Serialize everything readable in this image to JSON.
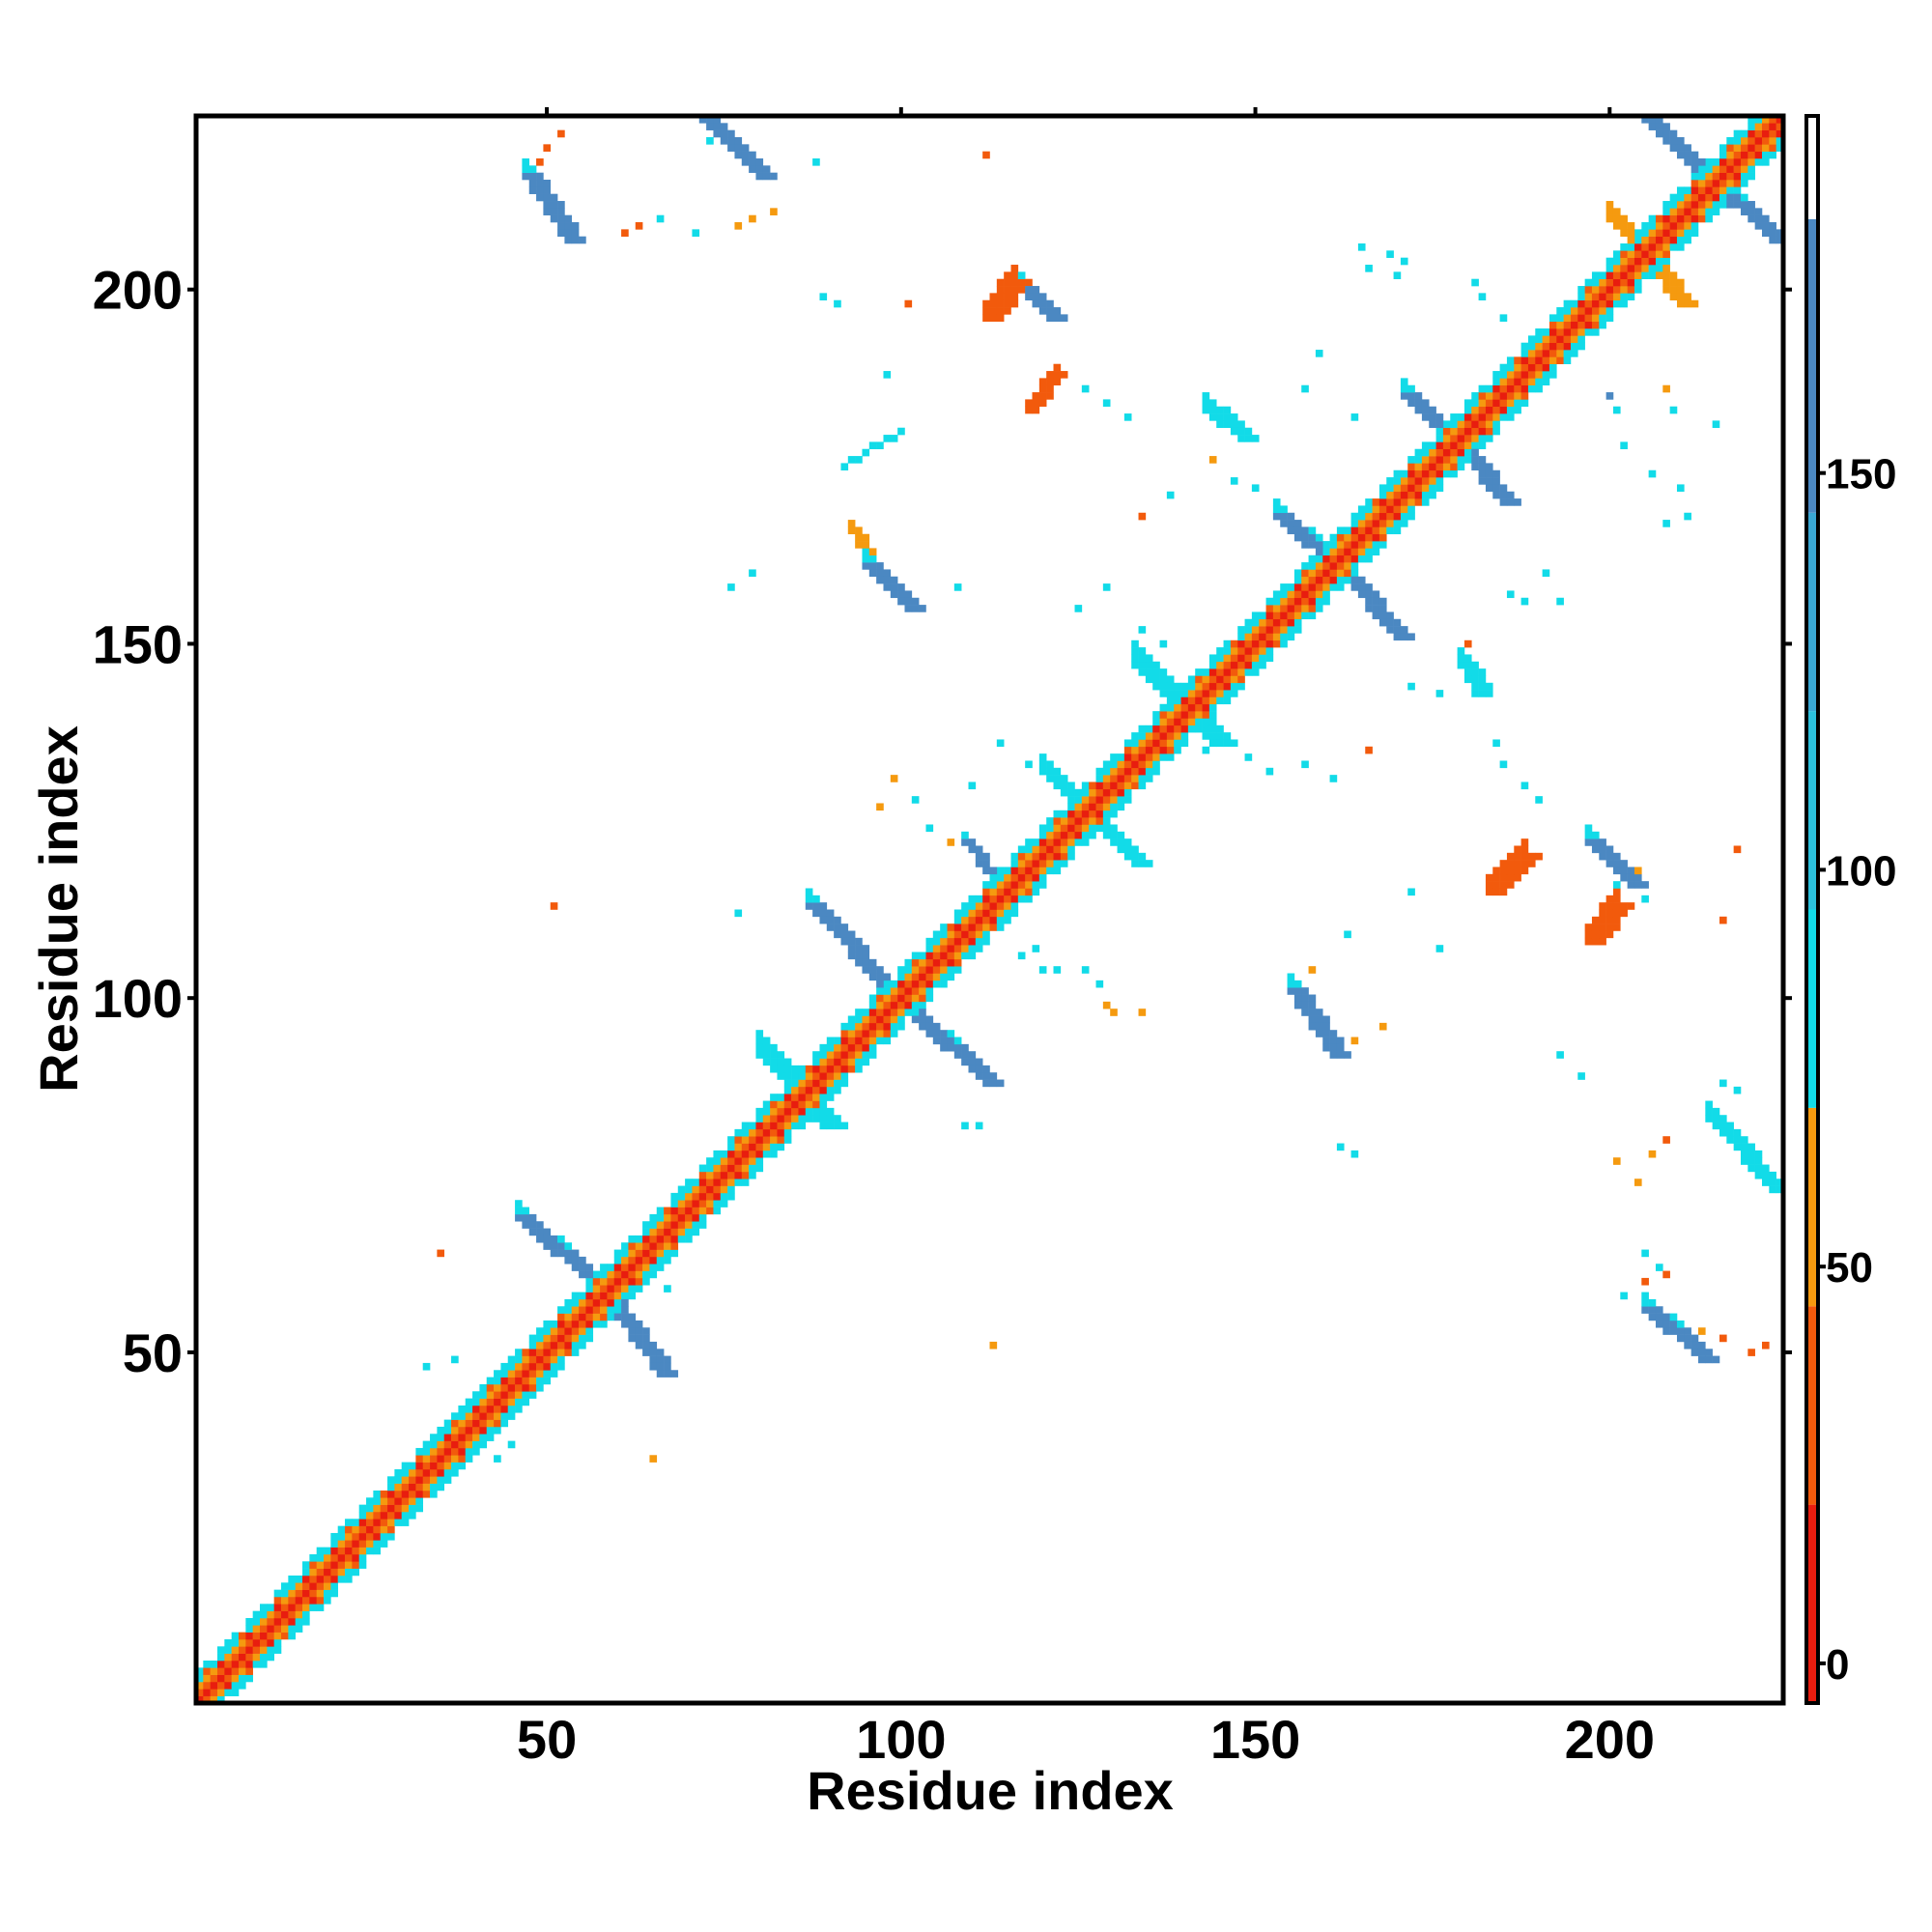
{
  "chart_data": {
    "type": "heatmap",
    "title": "",
    "xlabel": "Residue index",
    "ylabel": "Residue index",
    "xlim": [
      1,
      224
    ],
    "ylim": [
      1,
      224
    ],
    "xticks": [
      50,
      100,
      150,
      200
    ],
    "yticks": [
      50,
      100,
      150,
      200
    ],
    "grid": false,
    "legend": "none",
    "colorbar": {
      "placement": "right",
      "ticks": [
        0,
        50,
        100,
        150
      ],
      "range": [
        -5,
        195
      ],
      "bands": [
        {
          "from": -5,
          "to": 20,
          "color": "#e81d0f"
        },
        {
          "from": 20,
          "to": 45,
          "color": "#f25a0c"
        },
        {
          "from": 45,
          "to": 70,
          "color": "#f59a0f"
        },
        {
          "from": 70,
          "to": 95,
          "color": "#12dbe8"
        },
        {
          "from": 95,
          "to": 120,
          "color": "#2cc0dc"
        },
        {
          "from": 120,
          "to": 145,
          "color": "#3aa7d3"
        },
        {
          "from": 145,
          "to": 182,
          "color": "#4b88c2"
        },
        {
          "from": 182,
          "to": 195,
          "color": "#ffffff"
        }
      ]
    },
    "color_scale": {
      "0": "#e81d0f",
      "1": "#f25a0c",
      "2": "#f59a0f",
      "3": "#12dbe8",
      "4": "#4b88c2"
    },
    "diagonal": {
      "from": 1,
      "to": 224
    },
    "segments": [
      {
        "x0": 47,
        "y0": 216,
        "x1": 53,
        "y1": 207,
        "v": 4,
        "w": 3
      },
      {
        "x0": 72,
        "y0": 224,
        "x1": 80,
        "y1": 216,
        "v": 4,
        "w": 3
      },
      {
        "x0": 46,
        "y0": 69,
        "x1": 58,
        "y1": 58,
        "v": 4,
        "w": 3
      },
      {
        "x0": 58,
        "y0": 58,
        "x1": 66,
        "y1": 47,
        "v": 4,
        "w": 3
      },
      {
        "x0": 87,
        "y0": 113,
        "x1": 98,
        "y1": 101,
        "v": 4,
        "w": 3
      },
      {
        "x0": 101,
        "y0": 98,
        "x1": 112,
        "y1": 88,
        "v": 4,
        "w": 3
      },
      {
        "x0": 80,
        "y0": 92,
        "x1": 89,
        "y1": 82,
        "v": 3,
        "w": 4
      },
      {
        "x0": 133,
        "y0": 147,
        "x1": 144,
        "y1": 136,
        "v": 3,
        "w": 4
      },
      {
        "x0": 120,
        "y0": 132,
        "x1": 133,
        "y1": 119,
        "v": 3,
        "w": 3
      },
      {
        "x0": 153,
        "y0": 168,
        "x1": 162,
        "y1": 160,
        "v": 4,
        "w": 3
      },
      {
        "x0": 162,
        "y0": 160,
        "x1": 170,
        "y1": 151,
        "v": 4,
        "w": 3
      },
      {
        "x0": 171,
        "y0": 185,
        "x1": 178,
        "y1": 178,
        "v": 4,
        "w": 3
      },
      {
        "x0": 178,
        "y0": 178,
        "x1": 185,
        "y1": 170,
        "v": 4,
        "w": 3
      },
      {
        "x0": 205,
        "y0": 224,
        "x1": 213,
        "y1": 216,
        "v": 4,
        "w": 3
      },
      {
        "x0": 213,
        "y0": 216,
        "x1": 223,
        "y1": 207,
        "v": 4,
        "w": 3
      },
      {
        "x0": 200,
        "y0": 210,
        "x1": 210,
        "y1": 198,
        "v": 2,
        "w": 3
      },
      {
        "x0": 197,
        "y0": 122,
        "x1": 203,
        "y1": 116,
        "v": 4,
        "w": 3
      },
      {
        "x0": 197,
        "y0": 108,
        "x1": 201,
        "y1": 113,
        "v": 1,
        "w": 3
      },
      {
        "x0": 183,
        "y0": 115,
        "x1": 188,
        "y1": 120,
        "v": 1,
        "w": 3
      },
      {
        "x0": 155,
        "y0": 101,
        "x1": 161,
        "y1": 92,
        "v": 4,
        "w": 3
      },
      {
        "x0": 205,
        "y0": 56,
        "x1": 213,
        "y1": 49,
        "v": 4,
        "w": 3
      },
      {
        "x0": 214,
        "y0": 83,
        "x1": 223,
        "y1": 73,
        "v": 3,
        "w": 3
      },
      {
        "x0": 95,
        "y0": 161,
        "x1": 101,
        "y1": 155,
        "v": 4,
        "w": 3
      },
      {
        "x0": 93,
        "y0": 166,
        "x1": 96,
        "y1": 161,
        "v": 2,
        "w": 2
      },
      {
        "x0": 112,
        "y0": 196,
        "x1": 116,
        "y1": 201,
        "v": 1,
        "w": 3
      },
      {
        "x0": 117,
        "y0": 200,
        "x1": 121,
        "y1": 196,
        "v": 4,
        "w": 3
      },
      {
        "x0": 118,
        "y0": 183,
        "x1": 122,
        "y1": 188,
        "v": 1,
        "w": 2
      },
      {
        "x0": 143,
        "y0": 183,
        "x1": 148,
        "y1": 179,
        "v": 3,
        "w": 3
      },
      {
        "x0": 179,
        "y0": 147,
        "x1": 181,
        "y1": 143,
        "v": 3,
        "w": 3
      },
      {
        "x0": 32,
        "y0": 35,
        "x1": 45,
        "y1": 48,
        "v": 3,
        "w": 2
      },
      {
        "x0": 36,
        "y0": 33,
        "x1": 48,
        "y1": 45,
        "v": 3,
        "w": 2
      },
      {
        "x0": 109,
        "y0": 122,
        "x1": 115,
        "y1": 114,
        "v": 4,
        "w": 2
      },
      {
        "x0": 92,
        "y0": 175,
        "x1": 100,
        "y1": 180,
        "v": 3,
        "w": 1
      }
    ],
    "points": [
      [
        50,
        220,
        1
      ],
      [
        49,
        218,
        1
      ],
      [
        52,
        222,
        1
      ],
      [
        61,
        208,
        1
      ],
      [
        63,
        209,
        1
      ],
      [
        66,
        210,
        3
      ],
      [
        71,
        208,
        3
      ],
      [
        77,
        209,
        2
      ],
      [
        79,
        210,
        2
      ],
      [
        82,
        211,
        2
      ],
      [
        73,
        221,
        3
      ],
      [
        88,
        218,
        3
      ],
      [
        112,
        219,
        1
      ],
      [
        89,
        199,
        3
      ],
      [
        91,
        198,
        3
      ],
      [
        101,
        198,
        1
      ],
      [
        98,
        188,
        3
      ],
      [
        126,
        186,
        3
      ],
      [
        129,
        184,
        3
      ],
      [
        132,
        182,
        3
      ],
      [
        144,
        176,
        2
      ],
      [
        150,
        172,
        3
      ],
      [
        147,
        173,
        3
      ],
      [
        138,
        171,
        3
      ],
      [
        134,
        168,
        1
      ],
      [
        149,
        180,
        1
      ],
      [
        157,
        186,
        3
      ],
      [
        159,
        191,
        3
      ],
      [
        164,
        182,
        3
      ],
      [
        181,
        201,
        3
      ],
      [
        182,
        199,
        3
      ],
      [
        185,
        196,
        3
      ],
      [
        209,
        183,
        3
      ],
      [
        215,
        181,
        3
      ],
      [
        208,
        186,
        2
      ],
      [
        165,
        206,
        3
      ],
      [
        166,
        203,
        3
      ],
      [
        169,
        205,
        3
      ],
      [
        170,
        202,
        3
      ],
      [
        171,
        204,
        3
      ],
      [
        200,
        185,
        4
      ],
      [
        201,
        183,
        3
      ],
      [
        202,
        178,
        3
      ],
      [
        206,
        174,
        3
      ],
      [
        210,
        172,
        3
      ],
      [
        208,
        167,
        3
      ],
      [
        211,
        168,
        3
      ],
      [
        188,
        156,
        3
      ],
      [
        186,
        157,
        3
      ],
      [
        191,
        160,
        3
      ],
      [
        193,
        156,
        3
      ],
      [
        180,
        150,
        1
      ],
      [
        172,
        144,
        3
      ],
      [
        176,
        143,
        3
      ],
      [
        184,
        136,
        3
      ],
      [
        185,
        133,
        3
      ],
      [
        188,
        130,
        3
      ],
      [
        190,
        128,
        3
      ],
      [
        143,
        135,
        3
      ],
      [
        149,
        134,
        3
      ],
      [
        152,
        132,
        3
      ],
      [
        157,
        133,
        3
      ],
      [
        161,
        131,
        3
      ],
      [
        166,
        135,
        1
      ],
      [
        137,
        150,
        3
      ],
      [
        134,
        152,
        3
      ],
      [
        125,
        155,
        3
      ],
      [
        129,
        158,
        3
      ],
      [
        79,
        160,
        3
      ],
      [
        76,
        158,
        3
      ],
      [
        108,
        158,
        3
      ],
      [
        114,
        136,
        3
      ],
      [
        118,
        133,
        3
      ],
      [
        110,
        130,
        3
      ],
      [
        102,
        128,
        3
      ],
      [
        104,
        124,
        3
      ],
      [
        107,
        122,
        2
      ],
      [
        97,
        127,
        2
      ],
      [
        99,
        131,
        2
      ],
      [
        77,
        112,
        3
      ],
      [
        51,
        113,
        1
      ],
      [
        119,
        107,
        3
      ],
      [
        117,
        106,
        3
      ],
      [
        120,
        104,
        3
      ],
      [
        122,
        104,
        3
      ],
      [
        126,
        104,
        3
      ],
      [
        128,
        102,
        3
      ],
      [
        129,
        99,
        2
      ],
      [
        134,
        98,
        2
      ],
      [
        130,
        98,
        2
      ],
      [
        163,
        109,
        3
      ],
      [
        172,
        115,
        3
      ],
      [
        176,
        107,
        3
      ],
      [
        201,
        116,
        3
      ],
      [
        204,
        118,
        2
      ],
      [
        205,
        114,
        3
      ],
      [
        216,
        111,
        1
      ],
      [
        218,
        121,
        1
      ],
      [
        158,
        104,
        2
      ],
      [
        164,
        94,
        2
      ],
      [
        168,
        96,
        2
      ],
      [
        193,
        92,
        3
      ],
      [
        196,
        89,
        3
      ],
      [
        216,
        88,
        3
      ],
      [
        218,
        87,
        3
      ],
      [
        162,
        79,
        3
      ],
      [
        164,
        78,
        3
      ],
      [
        109,
        82,
        3
      ],
      [
        111,
        82,
        3
      ],
      [
        201,
        77,
        2
      ],
      [
        204,
        74,
        2
      ],
      [
        208,
        80,
        1
      ],
      [
        206,
        78,
        2
      ],
      [
        207,
        62,
        3
      ],
      [
        205,
        60,
        1
      ],
      [
        208,
        61,
        1
      ],
      [
        202,
        58,
        3
      ],
      [
        205,
        64,
        3
      ],
      [
        214,
        50,
        1
      ],
      [
        216,
        52,
        1
      ],
      [
        213,
        53,
        2
      ],
      [
        220,
        50,
        1
      ],
      [
        222,
        51,
        1
      ],
      [
        35,
        64,
        1
      ],
      [
        113,
        51,
        2
      ],
      [
        65,
        35,
        2
      ],
      [
        33,
        48,
        3
      ],
      [
        37,
        49,
        3
      ],
      [
        43,
        35,
        3
      ],
      [
        45,
        37,
        3
      ],
      [
        29,
        31,
        3
      ],
      [
        31,
        27,
        3
      ],
      [
        66,
        68,
        3
      ],
      [
        69,
        71,
        3
      ],
      [
        65,
        61,
        3
      ],
      [
        67,
        59,
        3
      ],
      [
        100,
        104,
        3
      ],
      [
        97,
        96,
        3
      ],
      [
        70,
        74,
        3
      ],
      [
        74,
        76,
        3
      ]
    ]
  }
}
